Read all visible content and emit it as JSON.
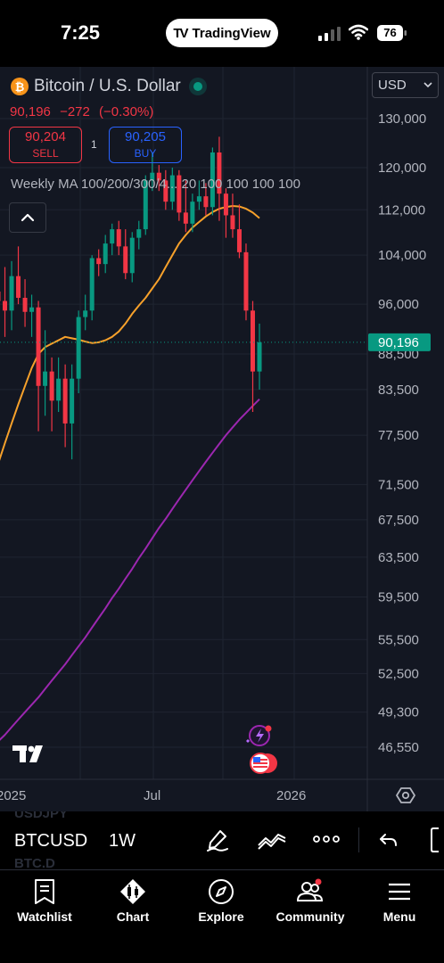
{
  "status_bar": {
    "time": "7:25",
    "app_pill": "TradingView",
    "battery": "76"
  },
  "chart_header": {
    "symbol_title": "Bitcoin / U.S. Dollar",
    "last_price": "90,196",
    "change": "−272",
    "change_pct": "(−0.30%)",
    "sell_price": "90,204",
    "sell_label": "SELL",
    "buy_price": "90,205",
    "buy_label": "BUY",
    "spread": "1",
    "indicator_label": "Weekly MA 100/200/300/4...  20  100  100  100  100",
    "currency_select": "USD",
    "icon_currency": "bitcoin-icon",
    "icon_collapse": "chevron-up-icon"
  },
  "chart_data": {
    "type": "candlestick",
    "title": "Bitcoin / U.S. Dollar",
    "interval": "1W",
    "y_tick_labels": [
      "130,000",
      "120,000",
      "112,000",
      "104,000",
      "96,000",
      "88,500",
      "83,500",
      "77,500",
      "71,500",
      "67,500",
      "63,500",
      "59,500",
      "55,500",
      "52,500",
      "49,300",
      "46,550"
    ],
    "y_ticks": [
      130000,
      120000,
      112000,
      104000,
      96000,
      88500,
      83500,
      77500,
      71500,
      67500,
      63500,
      59500,
      55500,
      52500,
      49300,
      46550
    ],
    "y_scale": "log",
    "ylim": [
      44000,
      140000
    ],
    "x_tick_labels": [
      "2025",
      "Jul",
      "2026"
    ],
    "current_price_label": "90,196",
    "current_price": 90196,
    "colors": {
      "up": "#089981",
      "down": "#f23645",
      "ma_fast": "#f7a12b",
      "ma_slow": "#9c27b0",
      "price_label_bg": "#089981"
    },
    "candles": [
      {
        "o": 98000,
        "h": 106000,
        "l": 92000,
        "c": 96500
      },
      {
        "o": 96500,
        "h": 102000,
        "l": 91000,
        "c": 95000
      },
      {
        "o": 95000,
        "h": 103000,
        "l": 92000,
        "c": 100500
      },
      {
        "o": 100500,
        "h": 105500,
        "l": 96000,
        "c": 97000
      },
      {
        "o": 97000,
        "h": 100000,
        "l": 92500,
        "c": 94800
      },
      {
        "o": 94800,
        "h": 97500,
        "l": 91000,
        "c": 95500
      },
      {
        "o": 95500,
        "h": 96500,
        "l": 78000,
        "c": 84000
      },
      {
        "o": 84000,
        "h": 92000,
        "l": 80000,
        "c": 86000
      },
      {
        "o": 86000,
        "h": 88000,
        "l": 78000,
        "c": 82000
      },
      {
        "o": 82000,
        "h": 88000,
        "l": 80500,
        "c": 85000
      },
      {
        "o": 85000,
        "h": 87000,
        "l": 76000,
        "c": 79000
      },
      {
        "o": 79000,
        "h": 87000,
        "l": 74500,
        "c": 85000
      },
      {
        "o": 85000,
        "h": 95000,
        "l": 83000,
        "c": 94000
      },
      {
        "o": 94000,
        "h": 97500,
        "l": 92000,
        "c": 95000
      },
      {
        "o": 95000,
        "h": 104000,
        "l": 93500,
        "c": 103500
      },
      {
        "o": 103500,
        "h": 105000,
        "l": 100500,
        "c": 102500
      },
      {
        "o": 102500,
        "h": 107500,
        "l": 101000,
        "c": 106000
      },
      {
        "o": 106000,
        "h": 109500,
        "l": 104000,
        "c": 108500
      },
      {
        "o": 108500,
        "h": 110000,
        "l": 104000,
        "c": 105500
      },
      {
        "o": 105500,
        "h": 108500,
        "l": 100000,
        "c": 101000
      },
      {
        "o": 101000,
        "h": 108000,
        "l": 99500,
        "c": 107000
      },
      {
        "o": 107000,
        "h": 110000,
        "l": 105000,
        "c": 108500
      },
      {
        "o": 108500,
        "h": 118500,
        "l": 107500,
        "c": 117500
      },
      {
        "o": 117500,
        "h": 123000,
        "l": 115500,
        "c": 119000
      },
      {
        "o": 119000,
        "h": 120500,
        "l": 115500,
        "c": 117500
      },
      {
        "o": 117500,
        "h": 119500,
        "l": 112000,
        "c": 113500
      },
      {
        "o": 113500,
        "h": 120000,
        "l": 112000,
        "c": 118500
      },
      {
        "o": 118500,
        "h": 119500,
        "l": 110000,
        "c": 111500
      },
      {
        "o": 111500,
        "h": 117500,
        "l": 108000,
        "c": 109500
      },
      {
        "o": 109500,
        "h": 115000,
        "l": 108000,
        "c": 113500
      },
      {
        "o": 113500,
        "h": 117500,
        "l": 112000,
        "c": 114500
      },
      {
        "o": 114500,
        "h": 117000,
        "l": 111000,
        "c": 112500
      },
      {
        "o": 112500,
        "h": 124000,
        "l": 111000,
        "c": 123000
      },
      {
        "o": 123000,
        "h": 126200,
        "l": 110000,
        "c": 115000
      },
      {
        "o": 115000,
        "h": 116000,
        "l": 107000,
        "c": 111000
      },
      {
        "o": 111000,
        "h": 115000,
        "l": 107000,
        "c": 108500
      },
      {
        "o": 108500,
        "h": 113000,
        "l": 103500,
        "c": 104500
      },
      {
        "o": 104500,
        "h": 106000,
        "l": 93500,
        "c": 95000
      },
      {
        "o": 95000,
        "h": 96500,
        "l": 80500,
        "c": 86000
      },
      {
        "o": 86000,
        "h": 93000,
        "l": 83500,
        "c": 90196
      }
    ],
    "ma_fast_label": "20",
    "ma_fast": [
      74000,
      76500,
      79000,
      81500,
      84000,
      86500,
      88500,
      89500,
      90000,
      90500,
      91000,
      90800,
      90600,
      90300,
      90100,
      90200,
      90500,
      91000,
      91800,
      93000,
      94500,
      95800,
      97000,
      98500,
      100000,
      102000,
      104000,
      106000,
      107500,
      108800,
      109800,
      110800,
      111600,
      112200,
      112500,
      112700,
      112600,
      112200,
      111500,
      110500
    ],
    "ma_slow_label": "100",
    "ma_slow": [
      47000,
      47500,
      48100,
      48700,
      49300,
      49900,
      50500,
      51200,
      51900,
      52600,
      53300,
      54100,
      54900,
      55700,
      56600,
      57500,
      58400,
      59400,
      60300,
      61300,
      62300,
      63400,
      64400,
      65500,
      66600,
      67600,
      68700,
      69800,
      70900,
      72000,
      73100,
      74200,
      75300,
      76400,
      77500,
      78500,
      79500,
      80400,
      81300,
      82200
    ]
  },
  "toolbar": {
    "symbol": "BTCUSD",
    "interval": "1W",
    "ghost_1": "USDJPY",
    "ghost_2": "BTC.D"
  },
  "bottom_nav": {
    "items": [
      {
        "label": "Watchlist",
        "icon": "watchlist-icon"
      },
      {
        "label": "Chart",
        "icon": "chart-icon"
      },
      {
        "label": "Explore",
        "icon": "compass-icon"
      },
      {
        "label": "Community",
        "icon": "community-icon"
      },
      {
        "label": "Menu",
        "icon": "menu-icon"
      }
    ]
  }
}
